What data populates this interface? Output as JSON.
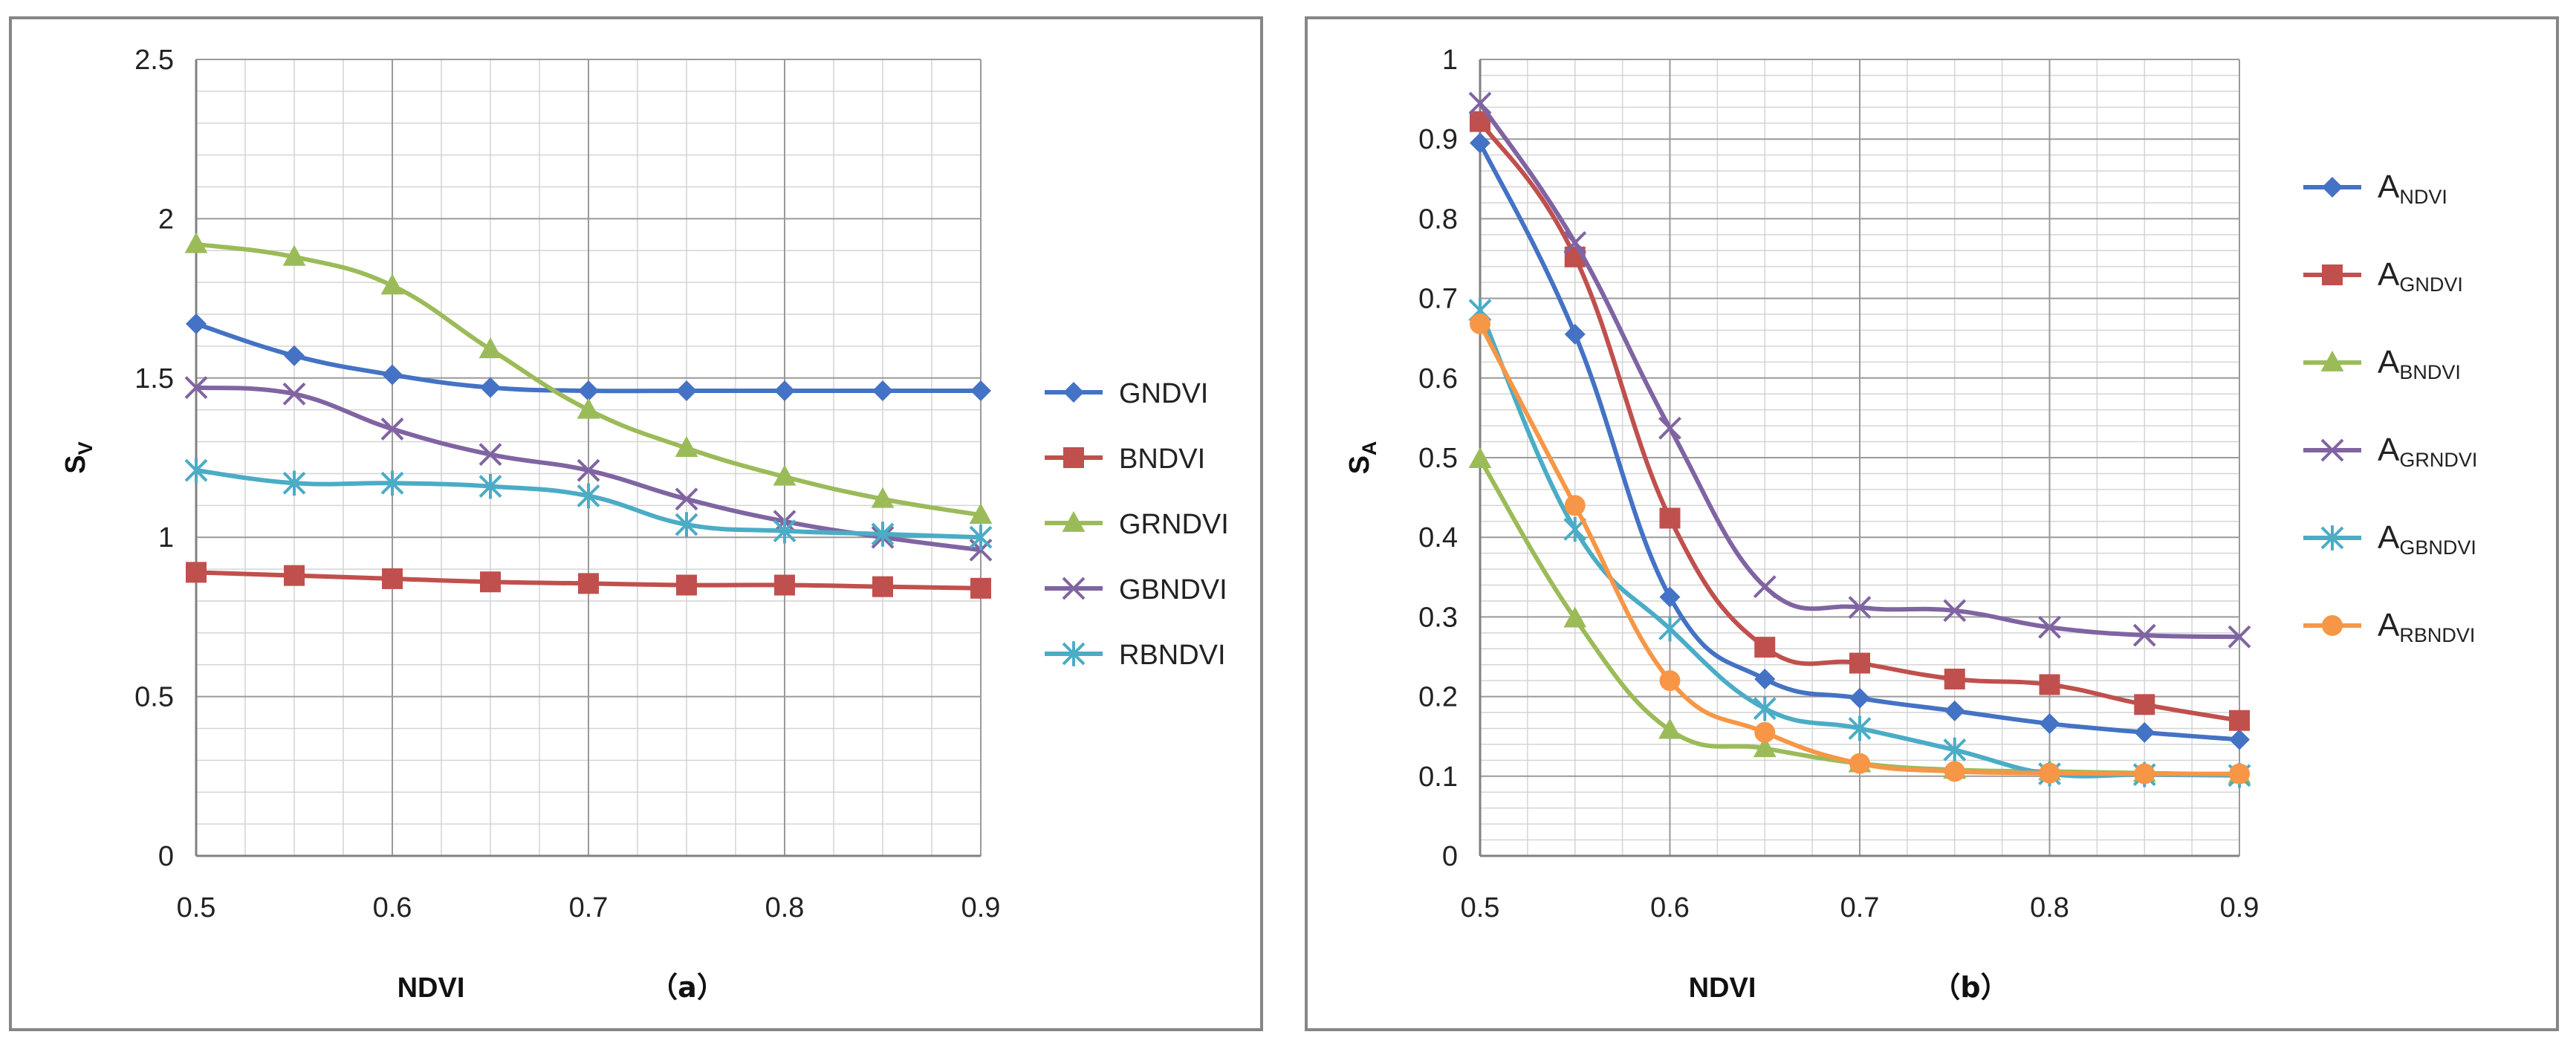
{
  "chart_data": [
    {
      "panel": "a",
      "type": "line",
      "caption": "（a）",
      "xlabel": "NDVI",
      "ylabel": {
        "main": "S",
        "sub": "V"
      },
      "x": [
        0.5,
        0.55,
        0.6,
        0.65,
        0.7,
        0.75,
        0.8,
        0.85,
        0.9
      ],
      "xticks": [
        "0.5",
        "0.6",
        "0.7",
        "0.8",
        "0.9"
      ],
      "xlim": [
        0.5,
        0.9
      ],
      "yticks": [
        "0",
        "0.5",
        "1",
        "1.5",
        "2",
        "2.5"
      ],
      "ylim": [
        0,
        2.5
      ],
      "minor_y_step": 0.1,
      "series": [
        {
          "name": "GNDVI",
          "sub": "",
          "color": "#4472C4",
          "marker": "diamond",
          "values": [
            1.67,
            1.57,
            1.51,
            1.47,
            1.46,
            1.46,
            1.46,
            1.46,
            1.46
          ]
        },
        {
          "name": "BNDVI",
          "sub": "",
          "color": "#C0504D",
          "marker": "square",
          "values": [
            0.89,
            0.88,
            0.87,
            0.86,
            0.855,
            0.85,
            0.85,
            0.845,
            0.84
          ]
        },
        {
          "name": "GRNDVI",
          "sub": "",
          "color": "#9BBB59",
          "marker": "triangle",
          "values": [
            1.92,
            1.88,
            1.79,
            1.59,
            1.4,
            1.28,
            1.19,
            1.12,
            1.07
          ]
        },
        {
          "name": "GBNDVI",
          "sub": "",
          "color": "#8064A2",
          "marker": "x",
          "values": [
            1.47,
            1.45,
            1.34,
            1.26,
            1.21,
            1.12,
            1.05,
            1.0,
            0.96
          ]
        },
        {
          "name": "RBNDVI",
          "sub": "",
          "color": "#4BACC6",
          "marker": "star",
          "values": [
            1.21,
            1.17,
            1.17,
            1.16,
            1.13,
            1.04,
            1.02,
            1.01,
            1.0
          ]
        }
      ]
    },
    {
      "panel": "b",
      "type": "line",
      "caption": "（b）",
      "xlabel": "NDVI",
      "ylabel": {
        "main": "S",
        "sub": "A"
      },
      "x": [
        0.5,
        0.55,
        0.6,
        0.65,
        0.7,
        0.75,
        0.8,
        0.85,
        0.9
      ],
      "xticks": [
        "0.5",
        "0.6",
        "0.7",
        "0.8",
        "0.9"
      ],
      "xlim": [
        0.5,
        0.9
      ],
      "yticks": [
        "0",
        "0.1",
        "0.2",
        "0.3",
        "0.4",
        "0.5",
        "0.6",
        "0.7",
        "0.8",
        "0.9",
        "1"
      ],
      "ylim": [
        0,
        1
      ],
      "minor_y_step": 0.02,
      "series": [
        {
          "name": "A",
          "sub": "NDVI",
          "color": "#4472C4",
          "marker": "diamond",
          "values": [
            0.895,
            0.655,
            0.325,
            0.222,
            0.198,
            0.182,
            0.166,
            0.155,
            0.146
          ]
        },
        {
          "name": "A",
          "sub": "GNDVI",
          "color": "#C0504D",
          "marker": "square",
          "values": [
            0.922,
            0.752,
            0.424,
            0.262,
            0.242,
            0.222,
            0.215,
            0.19,
            0.17
          ]
        },
        {
          "name": "A",
          "sub": "BNDVI",
          "color": "#9BBB59",
          "marker": "triangle",
          "values": [
            0.498,
            0.298,
            0.158,
            0.135,
            0.116,
            0.108,
            0.106,
            0.104,
            0.102
          ]
        },
        {
          "name": "A",
          "sub": "GRNDVI",
          "color": "#8064A2",
          "marker": "x",
          "values": [
            0.945,
            0.77,
            0.537,
            0.338,
            0.312,
            0.308,
            0.287,
            0.277,
            0.275
          ]
        },
        {
          "name": "A",
          "sub": "GBNDVI",
          "color": "#4BACC6",
          "marker": "star",
          "values": [
            0.685,
            0.41,
            0.285,
            0.185,
            0.16,
            0.133,
            0.103,
            0.102,
            0.101
          ]
        },
        {
          "name": "A",
          "sub": "RBNDVI",
          "color": "#F79646",
          "marker": "circle",
          "values": [
            0.668,
            0.44,
            0.22,
            0.155,
            0.116,
            0.106,
            0.104,
            0.103,
            0.103
          ]
        }
      ]
    }
  ]
}
